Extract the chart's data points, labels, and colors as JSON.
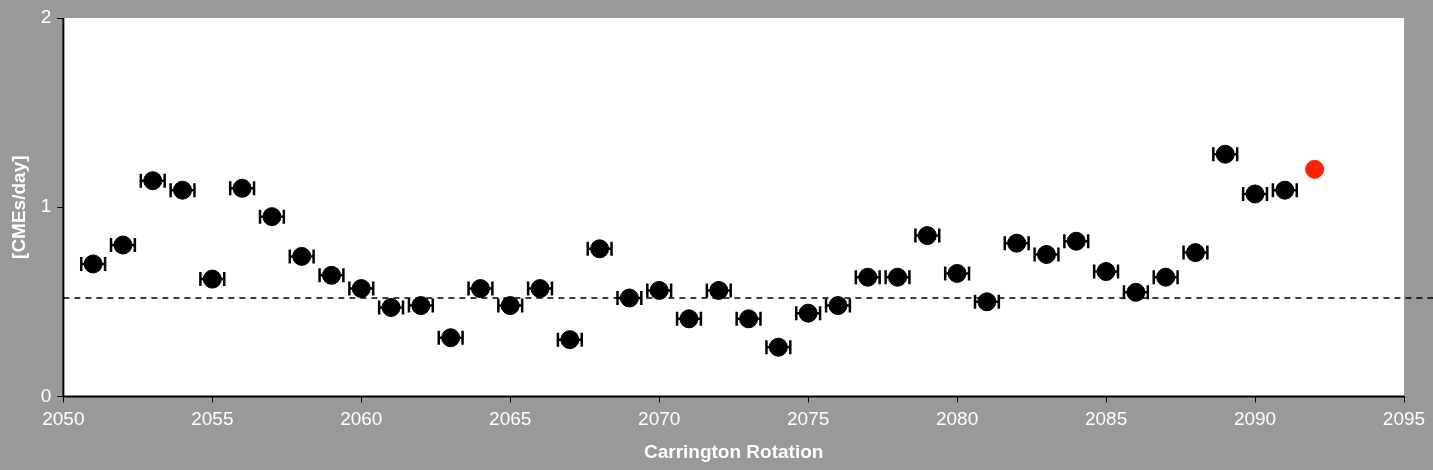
{
  "chart_data": {
    "type": "scatter",
    "xlabel": "Carrington Rotation",
    "ylabel": "[CMEs/day]",
    "xlim": [
      2050,
      2095
    ],
    "xticks": [
      2050,
      2055,
      2060,
      2065,
      2070,
      2075,
      2080,
      2085,
      2090,
      2095
    ],
    "ylim": [
      0,
      2
    ],
    "yticks": [
      0,
      1,
      2
    ],
    "grid": false,
    "legend": false,
    "marker": "circle",
    "series": [
      {
        "color": "#000000",
        "x": [
          2051,
          2052,
          2053,
          2054,
          2055,
          2056,
          2057,
          2058,
          2059,
          2060,
          2061,
          2062,
          2063,
          2064,
          2065,
          2066,
          2067,
          2068,
          2069,
          2070,
          2071,
          2072,
          2073,
          2074,
          2075,
          2076,
          2077,
          2078,
          2079,
          2080,
          2081,
          2082,
          2083,
          2084,
          2085,
          2086,
          2087,
          2088,
          2089,
          2090,
          2091
        ],
        "values": [
          0.7,
          0.8,
          1.14,
          1.09,
          0.62,
          1.1,
          0.95,
          0.74,
          0.64,
          0.57,
          0.47,
          0.48,
          0.31,
          0.57,
          0.48,
          0.57,
          0.3,
          0.78,
          0.52,
          0.56,
          0.41,
          0.56,
          0.41,
          0.26,
          0.44,
          0.48,
          0.63,
          0.63,
          0.85,
          0.65,
          0.5,
          0.81,
          0.75,
          0.82,
          0.66,
          0.55,
          0.63,
          0.76,
          1.28,
          1.07,
          1.09
        ],
        "xerrors": [
          0.4,
          0.4,
          0.4,
          0.4,
          0.4,
          0.4,
          0.4,
          0.4,
          0.4,
          0.4,
          0.4,
          0.4,
          0.4,
          0.4,
          0.4,
          0.4,
          0.4,
          0.4,
          0.4,
          0.4,
          0.4,
          0.4,
          0.4,
          0.4,
          0.4,
          0.4,
          0.4,
          0.4,
          0.4,
          0.4,
          0.4,
          0.4,
          0.4,
          0.4,
          0.4,
          0.4,
          0.4,
          0.4,
          0.4,
          0.4,
          0.4
        ]
      },
      {
        "color": "#ff2200",
        "x": [
          2092
        ],
        "values": [
          1.2
        ]
      }
    ],
    "ref_lines": [
      {
        "axis": "y",
        "value": 0.52,
        "color": "#000000",
        "line_style": "dashed"
      }
    ]
  }
}
